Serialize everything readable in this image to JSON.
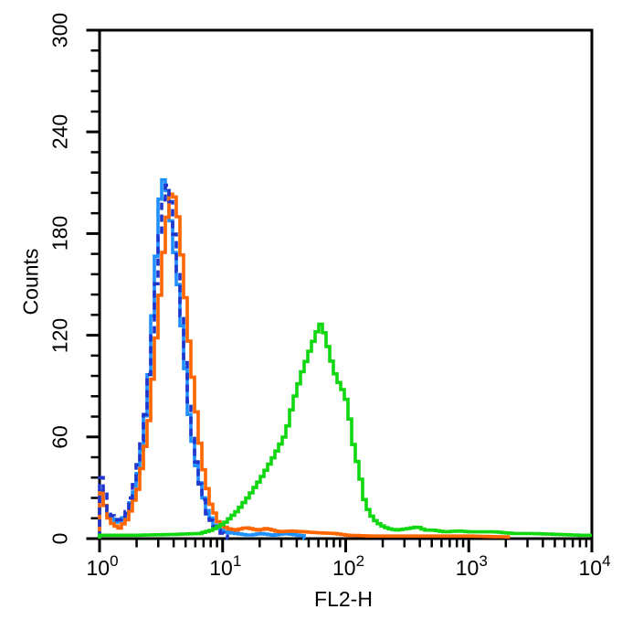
{
  "chart_data": {
    "type": "histogram",
    "title": "",
    "xlabel": "FL2-H",
    "ylabel": "Counts",
    "x_scale": "log10",
    "x_range": [
      1,
      10000
    ],
    "y_range": [
      0,
      300
    ],
    "x_tick_base": "10",
    "x_tick_exponents": [
      "0",
      "1",
      "2",
      "3",
      "4"
    ],
    "x_minor_tick_multiples": [
      2,
      3,
      4,
      5,
      6,
      7,
      8,
      9
    ],
    "y_tick_labels": [
      "0",
      "60",
      "120",
      "180",
      "240",
      "300"
    ],
    "y_tick_values": [
      0,
      60,
      120,
      180,
      240,
      300
    ],
    "y_minor_tick_interval": 12,
    "grid": false,
    "legend": "none",
    "frame": "full-box",
    "series": [
      {
        "name": "light-blue-histogram",
        "color": "#1E90FF",
        "line_style": "solid",
        "peak_x": 3.1,
        "peak_count": 214,
        "points": [
          [
            1.0,
            28
          ],
          [
            1.12,
            14
          ],
          [
            1.35,
            9
          ],
          [
            1.6,
            14
          ],
          [
            1.9,
            30
          ],
          [
            2.15,
            55
          ],
          [
            2.4,
            90
          ],
          [
            2.7,
            150
          ],
          [
            2.95,
            196
          ],
          [
            3.1,
            214
          ],
          [
            3.4,
            207
          ],
          [
            3.7,
            185
          ],
          [
            4.2,
            150
          ],
          [
            4.7,
            110
          ],
          [
            5.2,
            70
          ],
          [
            6.0,
            40
          ],
          [
            7.1,
            18
          ],
          [
            8.3,
            8
          ],
          [
            10,
            4
          ],
          [
            12.6,
            3
          ],
          [
            16,
            2
          ],
          [
            20,
            3
          ],
          [
            25,
            2
          ],
          [
            32,
            3
          ],
          [
            40,
            2
          ],
          [
            45,
            1.5
          ],
          [
            46,
            0
          ]
        ]
      },
      {
        "name": "orange-histogram",
        "color": "#FF6600",
        "line_style": "solid",
        "peak_x": 3.8,
        "peak_count": 207,
        "points": [
          [
            1.0,
            27
          ],
          [
            1.17,
            10
          ],
          [
            1.4,
            6
          ],
          [
            1.65,
            12
          ],
          [
            2.0,
            30
          ],
          [
            2.4,
            65
          ],
          [
            2.8,
            120
          ],
          [
            3.25,
            175
          ],
          [
            3.55,
            200
          ],
          [
            3.8,
            207
          ],
          [
            4.2,
            190
          ],
          [
            4.6,
            160
          ],
          [
            5.1,
            120
          ],
          [
            5.8,
            80
          ],
          [
            6.6,
            45
          ],
          [
            7.6,
            22
          ],
          [
            8.9,
            10
          ],
          [
            10.5,
            6
          ],
          [
            12.5,
            5
          ],
          [
            15,
            6.5
          ],
          [
            19,
            5
          ],
          [
            22,
            6
          ],
          [
            28,
            4
          ],
          [
            35,
            4.5
          ],
          [
            45,
            4
          ],
          [
            56,
            3.5
          ],
          [
            80,
            3
          ],
          [
            100,
            2
          ],
          [
            160,
            1.5
          ],
          [
            320,
            1.5
          ],
          [
            500,
            1.5
          ],
          [
            1000,
            1.5
          ],
          [
            2000,
            1
          ],
          [
            2100,
            0
          ]
        ]
      },
      {
        "name": "dark-blue-dashed-histogram",
        "color": "#1F35CC",
        "line_style": "dashed",
        "peak_x": 3.5,
        "peak_count": 210,
        "points": [
          [
            1.0,
            36
          ],
          [
            1.15,
            16
          ],
          [
            1.35,
            10
          ],
          [
            1.6,
            15
          ],
          [
            1.9,
            35
          ],
          [
            2.25,
            70
          ],
          [
            2.6,
            120
          ],
          [
            2.95,
            175
          ],
          [
            3.25,
            205
          ],
          [
            3.5,
            210
          ],
          [
            3.8,
            190
          ],
          [
            4.3,
            150
          ],
          [
            4.8,
            105
          ],
          [
            5.4,
            65
          ],
          [
            6.2,
            35
          ],
          [
            7.2,
            15
          ],
          [
            8.5,
            6
          ],
          [
            10,
            2
          ],
          [
            11,
            0
          ]
        ]
      },
      {
        "name": "green-histogram",
        "color": "#10D710",
        "line_style": "solid",
        "peak_x": 60,
        "peak_count": 127,
        "points": [
          [
            1.0,
            2
          ],
          [
            2.0,
            2
          ],
          [
            4.0,
            2.5
          ],
          [
            6.3,
            3
          ],
          [
            7.9,
            5
          ],
          [
            10,
            9
          ],
          [
            12.6,
            16
          ],
          [
            15.8,
            25
          ],
          [
            20,
            36
          ],
          [
            25,
            48
          ],
          [
            31.6,
            62
          ],
          [
            36,
            80
          ],
          [
            42.7,
            98
          ],
          [
            50,
            112
          ],
          [
            55,
            120
          ],
          [
            60,
            127
          ],
          [
            66,
            120
          ],
          [
            72,
            108
          ],
          [
            81,
            95
          ],
          [
            91,
            88
          ],
          [
            100,
            80
          ],
          [
            112,
            55
          ],
          [
            126,
            38
          ],
          [
            138,
            22
          ],
          [
            151,
            15
          ],
          [
            166,
            11
          ],
          [
            186,
            8
          ],
          [
            214,
            6
          ],
          [
            251,
            5
          ],
          [
            316,
            6
          ],
          [
            371,
            7
          ],
          [
            427,
            5
          ],
          [
            500,
            5
          ],
          [
            630,
            4
          ],
          [
            800,
            4.5
          ],
          [
            1000,
            4
          ],
          [
            1260,
            4
          ],
          [
            1580,
            4
          ],
          [
            2240,
            3
          ],
          [
            3160,
            3
          ],
          [
            5000,
            2.5
          ],
          [
            7900,
            2
          ],
          [
            10000,
            2
          ]
        ]
      }
    ]
  }
}
